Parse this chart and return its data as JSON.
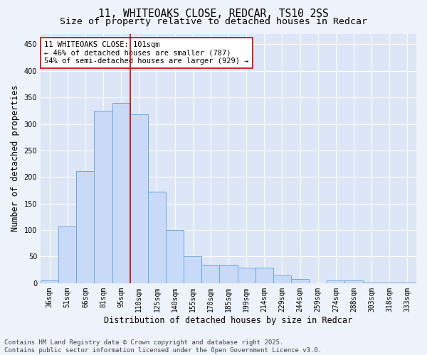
{
  "title_line1": "11, WHITEOAKS CLOSE, REDCAR, TS10 2SS",
  "title_line2": "Size of property relative to detached houses in Redcar",
  "xlabel": "Distribution of detached houses by size in Redcar",
  "ylabel": "Number of detached properties",
  "categories": [
    "36sqm",
    "51sqm",
    "66sqm",
    "81sqm",
    "95sqm",
    "110sqm",
    "125sqm",
    "140sqm",
    "155sqm",
    "170sqm",
    "185sqm",
    "199sqm",
    "214sqm",
    "229sqm",
    "244sqm",
    "259sqm",
    "274sqm",
    "288sqm",
    "303sqm",
    "318sqm",
    "333sqm"
  ],
  "values": [
    5,
    107,
    211,
    325,
    340,
    318,
    172,
    100,
    50,
    35,
    35,
    29,
    29,
    15,
    8,
    0,
    5,
    5,
    1,
    1,
    1
  ],
  "bar_color": "#c9daf8",
  "bar_edge_color": "#6fa8dc",
  "vline_x": 4.5,
  "vline_color": "#cc0000",
  "annotation_text": "11 WHITEOAKS CLOSE: 101sqm\n← 46% of detached houses are smaller (787)\n54% of semi-detached houses are larger (929) →",
  "annotation_box_color": "#ffffff",
  "annotation_box_edge_color": "#cc0000",
  "ylim": [
    0,
    470
  ],
  "yticks": [
    0,
    50,
    100,
    150,
    200,
    250,
    300,
    350,
    400,
    450
  ],
  "footer_line1": "Contains HM Land Registry data © Crown copyright and database right 2025.",
  "footer_line2": "Contains public sector information licensed under the Open Government Licence v3.0.",
  "bg_color": "#eef2fb",
  "plot_bg_color": "#dce6f7",
  "grid_color": "#ffffff",
  "title_fontsize": 10.5,
  "subtitle_fontsize": 9.5,
  "axis_label_fontsize": 8.5,
  "tick_fontsize": 7,
  "footer_fontsize": 6.5,
  "annotation_fontsize": 7.5
}
